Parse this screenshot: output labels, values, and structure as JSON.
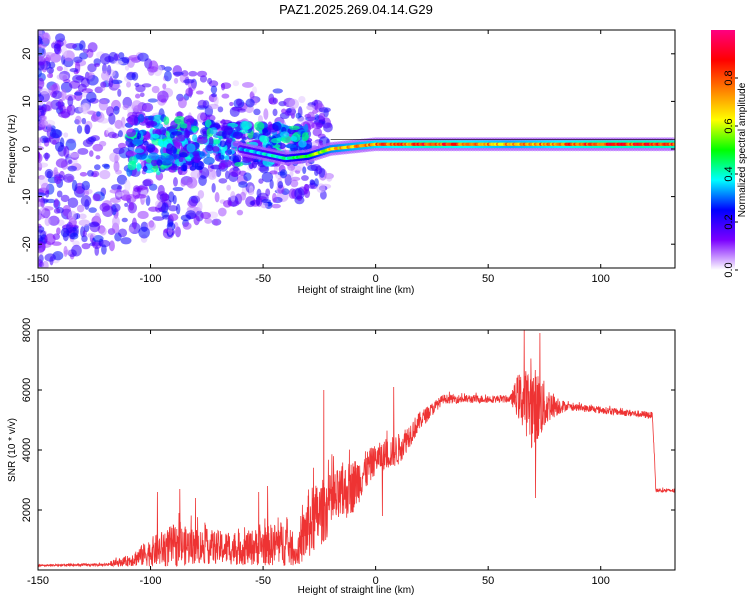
{
  "title": "PAZ1.2025.269.04.14.G29",
  "chart_data": [
    {
      "type": "heatmap",
      "xlabel": "Height of straight line (km)",
      "ylabel": "Frequency (Hz)",
      "xlim": [
        -150,
        133
      ],
      "ylim": [
        -25,
        25
      ],
      "xticks": [
        -150,
        -100,
        -50,
        0,
        50,
        100
      ],
      "yticks": [
        -20,
        -10,
        0,
        10,
        20
      ],
      "colorbar": {
        "label": "Normalized spectral amplitude",
        "range": [
          0,
          1
        ],
        "ticks": [
          0.0,
          0.2,
          0.4,
          0.6,
          0.8
        ],
        "tick_labels": [
          "0.0",
          "0.2",
          "0.4",
          "0.6",
          "0.8"
        ],
        "colormap": "rainbow",
        "colors": [
          "#ffffff",
          "#7b00ff",
          "#0000ff",
          "#00ffff",
          "#00ff00",
          "#ffff00",
          "#ff8000",
          "#ff0000",
          "#ff0080"
        ]
      },
      "ridge": [
        {
          "x": -60,
          "y": 0,
          "amp": 0.35
        },
        {
          "x": -50,
          "y": -1,
          "amp": 0.4
        },
        {
          "x": -40,
          "y": -2,
          "amp": 0.45
        },
        {
          "x": -30,
          "y": -1.5,
          "amp": 0.55
        },
        {
          "x": -20,
          "y": 0,
          "amp": 0.7
        },
        {
          "x": 0,
          "y": 1,
          "amp": 0.8
        },
        {
          "x": 25,
          "y": 1,
          "amp": 0.9
        },
        {
          "x": 60,
          "y": 1,
          "amp": 0.75
        },
        {
          "x": 100,
          "y": 1,
          "amp": 0.9
        },
        {
          "x": 133,
          "y": 1,
          "amp": 0.9
        }
      ]
    },
    {
      "type": "line",
      "xlabel": "Height of straight line (km)",
      "ylabel": "SNR (10 * v/v)",
      "xlim": [
        -150,
        133
      ],
      "ylim": [
        0,
        8000
      ],
      "xticks": [
        -150,
        -100,
        -50,
        0,
        50,
        100
      ],
      "yticks": [
        2000,
        4000,
        6000,
        8000
      ],
      "color": "#ee3333",
      "envelope": [
        {
          "x": -150,
          "base": 150,
          "noise": 50
        },
        {
          "x": -120,
          "base": 180,
          "noise": 80
        },
        {
          "x": -110,
          "base": 300,
          "noise": 300
        },
        {
          "x": -100,
          "base": 600,
          "noise": 800
        },
        {
          "x": -90,
          "base": 800,
          "noise": 1200
        },
        {
          "x": -80,
          "base": 800,
          "noise": 1000
        },
        {
          "x": -60,
          "base": 700,
          "noise": 900
        },
        {
          "x": -50,
          "base": 800,
          "noise": 1100
        },
        {
          "x": -40,
          "base": 900,
          "noise": 1300
        },
        {
          "x": -35,
          "base": 500,
          "noise": 600
        },
        {
          "x": -30,
          "base": 1500,
          "noise": 2000
        },
        {
          "x": -20,
          "base": 2200,
          "noise": 1700
        },
        {
          "x": -10,
          "base": 2800,
          "noise": 1500
        },
        {
          "x": 0,
          "base": 3700,
          "noise": 800
        },
        {
          "x": 10,
          "base": 4000,
          "noise": 900
        },
        {
          "x": 20,
          "base": 5000,
          "noise": 500
        },
        {
          "x": 30,
          "base": 5700,
          "noise": 250
        },
        {
          "x": 60,
          "base": 5700,
          "noise": 200
        },
        {
          "x": 63,
          "base": 5800,
          "noise": 1200
        },
        {
          "x": 70,
          "base": 5400,
          "noise": 2400
        },
        {
          "x": 78,
          "base": 5500,
          "noise": 800
        },
        {
          "x": 85,
          "base": 5450,
          "noise": 200
        },
        {
          "x": 123,
          "base": 5150,
          "noise": 200
        },
        {
          "x": 124.5,
          "base": 2650,
          "noise": 100
        },
        {
          "x": 133,
          "base": 2650,
          "noise": 100
        }
      ],
      "spikes": [
        {
          "x": -97,
          "y": 2600
        },
        {
          "x": -87,
          "y": 2700
        },
        {
          "x": -80,
          "y": 2400
        },
        {
          "x": -52,
          "y": 2600
        },
        {
          "x": -48,
          "y": 2800
        },
        {
          "x": -23,
          "y": 6000
        },
        {
          "x": 8,
          "y": 6100
        },
        {
          "x": 3,
          "y": 1800
        },
        {
          "x": 66,
          "y": 8000
        },
        {
          "x": 71,
          "y": 2400
        },
        {
          "x": 73,
          "y": 7900
        }
      ]
    }
  ]
}
